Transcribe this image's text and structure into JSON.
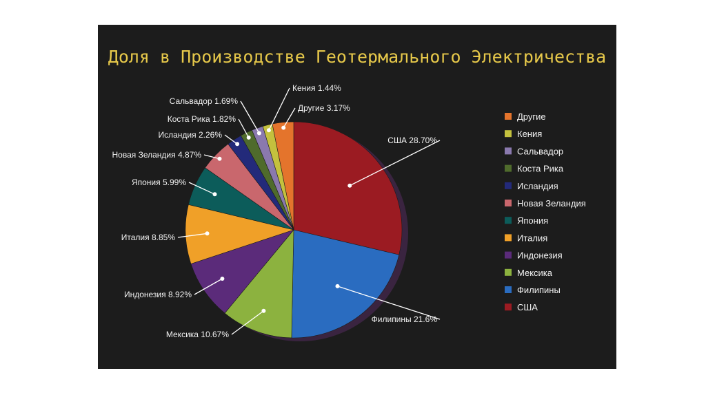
{
  "chart_data": {
    "type": "pie",
    "title": "Доля в Производстве Геотермального Электричества",
    "slices": [
      {
        "name": "США",
        "label": "США 28.70%",
        "value": 28.7,
        "color": "#9b1b22"
      },
      {
        "name": "Филипины",
        "label": "Филипины 21.6%",
        "value": 21.6,
        "color": "#2a6cc0"
      },
      {
        "name": "Мексика",
        "label": "Мексика 10.67%",
        "value": 10.67,
        "color": "#8cb23f"
      },
      {
        "name": "Индонезия",
        "label": "Индонезия 8.92%",
        "value": 8.92,
        "color": "#5b2b7a"
      },
      {
        "name": "Италия",
        "label": "Италия 8.85%",
        "value": 8.85,
        "color": "#f0a028"
      },
      {
        "name": "Япония",
        "label": "Япония 5.99%",
        "value": 5.99,
        "color": "#0c5c5a"
      },
      {
        "name": "Новая Зеландия",
        "label": "Новая Зеландия 4.87%",
        "value": 4.87,
        "color": "#c9676d"
      },
      {
        "name": "Исландия",
        "label": "Исландия 2.26%",
        "value": 2.26,
        "color": "#232a7a"
      },
      {
        "name": "Коста Рика",
        "label": "Коста Рика 1.82%",
        "value": 1.82,
        "color": "#4f6b2c"
      },
      {
        "name": "Сальвадор",
        "label": "Сальвадор 1.69%",
        "value": 1.69,
        "color": "#8a79ae"
      },
      {
        "name": "Кения",
        "label": "Кения 1.44%",
        "value": 1.44,
        "color": "#c4c13e"
      },
      {
        "name": "Другие",
        "label": "Другие 3.17%",
        "value": 3.17,
        "color": "#e4742c"
      }
    ],
    "legend": {
      "placement": "right",
      "items": [
        "Другие",
        "Кения",
        "Сальвадор",
        "Коста Рика",
        "Исландия",
        "Новая Зеландия",
        "Япония",
        "Италия",
        "Индонезия",
        "Мексика",
        "Филипины",
        "США"
      ]
    }
  }
}
